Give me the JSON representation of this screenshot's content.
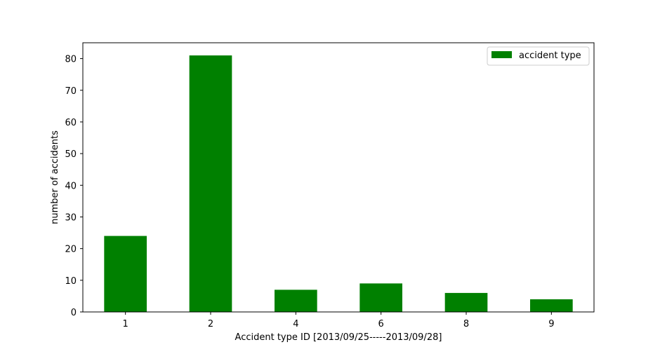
{
  "chart_data": {
    "type": "bar",
    "categories": [
      "1",
      "2",
      "4",
      "6",
      "8",
      "9"
    ],
    "series": [
      {
        "name": "accident type",
        "values": [
          24,
          81,
          7,
          9,
          6,
          4
        ],
        "color": "#008000"
      }
    ],
    "xlabel": "Accident type ID [2013/09/25-----2013/09/28]",
    "ylabel": "number of accidents",
    "ylim": [
      0,
      85
    ],
    "yticks": [
      0,
      10,
      20,
      30,
      40,
      50,
      60,
      70,
      80
    ],
    "grid": false,
    "legend_position": "top-right"
  }
}
